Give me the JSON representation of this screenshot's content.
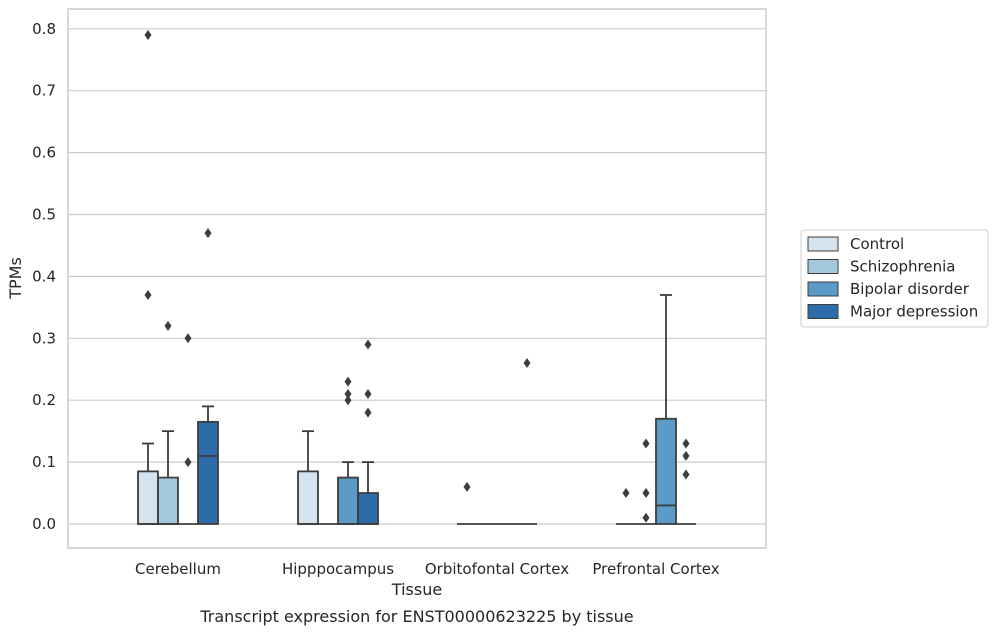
{
  "chart_data": {
    "type": "box",
    "caption": "Transcript expression for ENST00000623225 by tissue",
    "xlabel": "Tissue",
    "ylabel": "TPMs",
    "ylim": [
      -0.04,
      0.83
    ],
    "yticks": [
      0.0,
      0.1,
      0.2,
      0.3,
      0.4,
      0.5,
      0.6,
      0.7,
      0.8
    ],
    "ytick_labels": [
      "0.0",
      "0.1",
      "0.2",
      "0.3",
      "0.4",
      "0.5",
      "0.6",
      "0.7",
      "0.8"
    ],
    "grid": "horizontal",
    "legend_position": "right",
    "categories": [
      "Cerebellum",
      "Hipppocampus",
      "Orbitofontal Cortex",
      "Prefrontal Cortex"
    ],
    "series": [
      {
        "name": "Control",
        "color": "#d3e3ef",
        "boxes": [
          {
            "q1": 0.0,
            "median": 0.0,
            "q3": 0.085,
            "whisker_low": 0.0,
            "whisker_high": 0.13,
            "outliers": [
              0.79,
              0.37
            ]
          },
          {
            "q1": 0.0,
            "median": 0.0,
            "q3": 0.085,
            "whisker_low": 0.0,
            "whisker_high": 0.15,
            "outliers": []
          },
          {
            "q1": 0.0,
            "median": 0.0,
            "q3": 0.0,
            "whisker_low": 0.0,
            "whisker_high": 0.0,
            "outliers": [
              0.06
            ]
          },
          {
            "q1": 0.0,
            "median": 0.0,
            "q3": 0.0,
            "whisker_low": 0.0,
            "whisker_high": 0.0,
            "outliers": [
              0.05
            ]
          }
        ]
      },
      {
        "name": "Schizophrenia",
        "color": "#a3c7dd",
        "boxes": [
          {
            "q1": 0.0,
            "median": 0.0,
            "q3": 0.075,
            "whisker_low": 0.0,
            "whisker_high": 0.15,
            "outliers": [
              0.32
            ]
          },
          {
            "q1": 0.0,
            "median": 0.0,
            "q3": 0.0,
            "whisker_low": 0.0,
            "whisker_high": 0.0,
            "outliers": []
          },
          {
            "q1": 0.0,
            "median": 0.0,
            "q3": 0.0,
            "whisker_low": 0.0,
            "whisker_high": 0.0,
            "outliers": []
          },
          {
            "q1": 0.0,
            "median": 0.0,
            "q3": 0.0,
            "whisker_low": 0.0,
            "whisker_high": 0.0,
            "outliers": [
              0.13,
              0.05,
              0.01
            ]
          }
        ]
      },
      {
        "name": "Bipolar disorder",
        "color": "#5a9bc8",
        "boxes": [
          {
            "q1": 0.0,
            "median": 0.0,
            "q3": 0.0,
            "whisker_low": 0.0,
            "whisker_high": 0.0,
            "outliers": [
              0.3,
              0.1
            ]
          },
          {
            "q1": 0.0,
            "median": 0.0,
            "q3": 0.075,
            "whisker_low": 0.0,
            "whisker_high": 0.1,
            "outliers": [
              0.23,
              0.21,
              0.2
            ]
          },
          {
            "q1": 0.0,
            "median": 0.0,
            "q3": 0.0,
            "whisker_low": 0.0,
            "whisker_high": 0.0,
            "outliers": []
          },
          {
            "q1": 0.0,
            "median": 0.03,
            "q3": 0.17,
            "whisker_low": 0.0,
            "whisker_high": 0.37,
            "outliers": []
          }
        ]
      },
      {
        "name": "Major depression",
        "color": "#2c6ca8",
        "boxes": [
          {
            "q1": 0.0,
            "median": 0.11,
            "q3": 0.165,
            "whisker_low": 0.0,
            "whisker_high": 0.19,
            "outliers": [
              0.47
            ]
          },
          {
            "q1": 0.0,
            "median": 0.0,
            "q3": 0.05,
            "whisker_low": 0.0,
            "whisker_high": 0.1,
            "outliers": [
              0.29,
              0.21,
              0.18
            ]
          },
          {
            "q1": 0.0,
            "median": 0.0,
            "q3": 0.0,
            "whisker_low": 0.0,
            "whisker_high": 0.0,
            "outliers": [
              0.26
            ]
          },
          {
            "q1": 0.0,
            "median": 0.0,
            "q3": 0.0,
            "whisker_low": 0.0,
            "whisker_high": 0.0,
            "outliers": [
              0.13,
              0.11,
              0.08
            ]
          }
        ]
      }
    ]
  }
}
